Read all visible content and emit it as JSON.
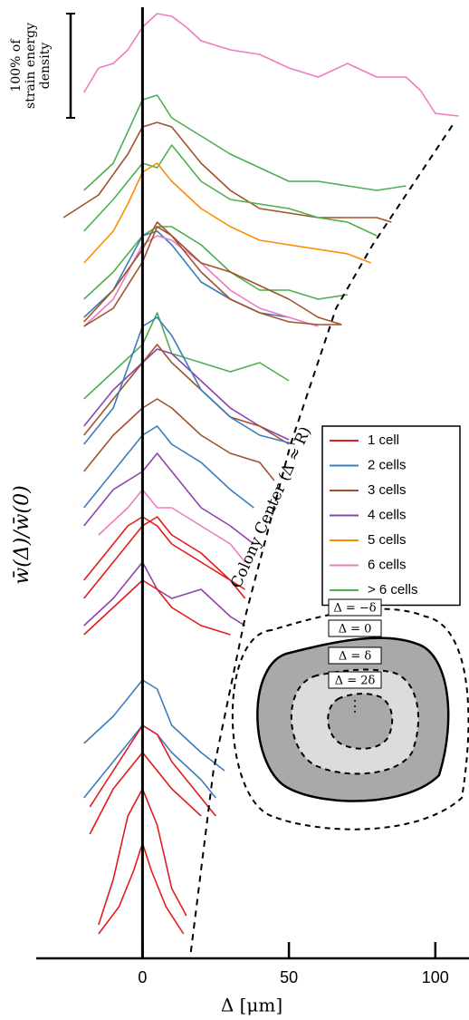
{
  "chart_data": {
    "type": "line",
    "y_label": "w̄(Δ)/w̄(0)",
    "x_label": "Δ [μm]",
    "xlim": [
      -36.3,
      111.5
    ],
    "xticks": [
      0,
      50,
      100
    ],
    "ylim": [
      0,
      105.7
    ],
    "reference_line_x": 0,
    "scale_bar": {
      "lines": [
        "100% of",
        "strain energy",
        "density"
      ],
      "value": 11.5
    },
    "boundary": {
      "label": "Colony Center (Δ ≈ R)",
      "x": [
        16.5,
        24.2,
        35.1,
        50.6,
        66.1,
        78.6,
        106.5
      ],
      "y": [
        0.7,
        20.7,
        37.7,
        56.7,
        71.7,
        78.7,
        92.2
      ]
    },
    "legend": [
      {
        "label": "1 cell",
        "color": "#e41a1c"
      },
      {
        "label": "2 cells",
        "color": "#3a7dbf"
      },
      {
        "label": "3 cells",
        "color": "#a0522d"
      },
      {
        "label": "4 cells",
        "color": "#8e44ad"
      },
      {
        "label": "5 cells",
        "color": "#ff8c00"
      },
      {
        "label": "6 cells",
        "color": "#f07ac0"
      },
      {
        "label": "> 6 cells",
        "color": "#4caf50"
      }
    ],
    "inset": {
      "labels": [
        "Δ = −δ",
        "Δ = 0",
        "Δ = δ",
        "Δ = 2δ"
      ]
    },
    "series": [
      {
        "name": "6 cells",
        "color": "#f07ac0",
        "x": [
          -20,
          -15,
          -10,
          -5,
          0,
          5,
          10,
          15,
          20,
          30,
          40,
          50,
          60,
          70,
          80,
          90,
          95,
          100,
          108
        ],
        "values": [
          95.5,
          98.2,
          98.7,
          100.2,
          102.7,
          104.2,
          103.9,
          102.7,
          101.2,
          100.2,
          99.7,
          98.2,
          97.2,
          98.7,
          97.2,
          97.2,
          95.7,
          93.2,
          92.9
        ]
      },
      {
        "name": "> 6 cells",
        "color": "#4caf50",
        "x": [
          -20,
          -10,
          0,
          5,
          10,
          20,
          30,
          40,
          50,
          60,
          70,
          80,
          90
        ],
        "values": [
          84.7,
          87.7,
          94.7,
          95.2,
          92.7,
          90.7,
          88.7,
          87.2,
          85.7,
          85.7,
          85.2,
          84.7,
          85.2
        ]
      },
      {
        "name": "3 cells",
        "color": "#a0522d",
        "x": [
          -27,
          -15,
          -5,
          0,
          5,
          10,
          20,
          30,
          40,
          50,
          60,
          80,
          85
        ],
        "values": [
          81.7,
          84.2,
          88.7,
          91.7,
          92.2,
          91.7,
          87.7,
          84.7,
          82.7,
          82.2,
          81.7,
          81.7,
          81.2
        ]
      },
      {
        "name": "> 6 cells",
        "color": "#4caf50",
        "x": [
          -20,
          -10,
          0,
          5,
          10,
          20,
          30,
          40,
          50,
          60,
          70,
          80
        ],
        "values": [
          80.2,
          83.7,
          87.7,
          87.2,
          89.7,
          85.7,
          83.7,
          83.2,
          82.7,
          81.7,
          81.2,
          79.7
        ]
      },
      {
        "name": "5 cells",
        "color": "#ff8c00",
        "x": [
          -20,
          -10,
          -5,
          0,
          5,
          10,
          20,
          30,
          40,
          50,
          60,
          70,
          78
        ],
        "values": [
          76.7,
          80.2,
          83.2,
          86.7,
          87.7,
          85.7,
          82.7,
          80.7,
          79.2,
          78.7,
          78.2,
          77.7,
          76.7
        ]
      },
      {
        "name": "> 6 cells",
        "color": "#4caf50",
        "x": [
          -20,
          -10,
          0,
          5,
          10,
          20,
          30,
          40,
          50,
          60,
          70
        ],
        "values": [
          72.7,
          75.7,
          79.7,
          80.7,
          80.7,
          78.7,
          75.7,
          73.7,
          73.7,
          72.7,
          73.2
        ]
      },
      {
        "name": "2 cells",
        "color": "#3a7dbf",
        "x": [
          -20,
          -10,
          0,
          5,
          10,
          20,
          30,
          40,
          50
        ],
        "values": [
          70.7,
          73.7,
          79.7,
          80.2,
          78.7,
          74.6,
          72.7,
          71.2,
          70.7
        ]
      },
      {
        "name": "6 cells",
        "color": "#f07ac0",
        "x": [
          -20,
          -10,
          0,
          5,
          10,
          20,
          30,
          40,
          50,
          60
        ],
        "values": [
          69.7,
          72.7,
          78.7,
          79.7,
          79.2,
          76.7,
          73.7,
          71.7,
          70.7,
          69.7
        ]
      },
      {
        "name": "3 cells",
        "color": "#a0522d",
        "x": [
          -20,
          -10,
          0,
          5,
          10,
          20,
          30,
          40,
          50,
          60,
          68
        ],
        "values": [
          70.2,
          73.7,
          78.2,
          81.2,
          79.7,
          76.7,
          75.7,
          74.2,
          72.7,
          70.7,
          69.9
        ]
      },
      {
        "name": "3 cells",
        "color": "#a0522d",
        "x": [
          -20,
          -10,
          0,
          5,
          10,
          20,
          30,
          40,
          50,
          60,
          68
        ],
        "values": [
          69.7,
          71.7,
          76.8,
          80.7,
          79.7,
          75.7,
          72.7,
          71.2,
          70.2,
          69.9,
          69.9
        ]
      },
      {
        "name": "> 6 cells",
        "color": "#4caf50",
        "x": [
          -20,
          -10,
          0,
          5,
          10,
          20,
          30,
          40,
          50
        ],
        "values": [
          61.7,
          64.7,
          67.7,
          71.2,
          66.7,
          65.7,
          64.7,
          65.7,
          63.7
        ]
      },
      {
        "name": "4 cells",
        "color": "#8e44ad",
        "x": [
          -20,
          -10,
          0,
          5,
          10,
          20,
          30,
          40,
          50
        ],
        "values": [
          58.7,
          62.7,
          65.7,
          67.2,
          66.7,
          63.7,
          60.7,
          58.7,
          57.2
        ]
      },
      {
        "name": "3 cells",
        "color": "#a0522d",
        "x": [
          -20,
          -10,
          0,
          5,
          10,
          20,
          30,
          40,
          50
        ],
        "values": [
          57.7,
          61.7,
          65.7,
          67.7,
          65.7,
          62.7,
          59.7,
          58.7,
          56.7
        ]
      },
      {
        "name": "2 cells",
        "color": "#3a7dbf",
        "x": [
          -20,
          -10,
          0,
          5,
          10,
          20,
          30,
          40,
          52
        ],
        "values": [
          56.7,
          60.7,
          69.7,
          70.7,
          68.7,
          62.7,
          59.7,
          57.7,
          56.7
        ]
      },
      {
        "name": "3 cells",
        "color": "#a0522d",
        "x": [
          -20,
          -10,
          0,
          5,
          10,
          20,
          30,
          40,
          45
        ],
        "values": [
          53.7,
          57.7,
          60.7,
          61.7,
          60.7,
          57.7,
          55.7,
          54.7,
          52.7
        ]
      },
      {
        "name": "2 cells",
        "color": "#3a7dbf",
        "x": [
          -20,
          -10,
          0,
          5,
          10,
          20,
          30,
          38
        ],
        "values": [
          49.7,
          53.7,
          57.7,
          58.7,
          56.7,
          54.7,
          51.7,
          49.7
        ]
      },
      {
        "name": "4 cells",
        "color": "#8e44ad",
        "x": [
          -20,
          -10,
          0,
          5,
          10,
          20,
          30,
          38
        ],
        "values": [
          47.7,
          51.7,
          53.7,
          55.7,
          53.7,
          49.7,
          47.7,
          45.7
        ]
      },
      {
        "name": "6 cells",
        "color": "#f07ac0",
        "x": [
          -15,
          -5,
          0,
          5,
          10,
          20,
          30,
          35
        ],
        "values": [
          46.7,
          49.7,
          51.7,
          49.7,
          49.7,
          47.7,
          45.7,
          43.7
        ]
      },
      {
        "name": "1 cell",
        "color": "#e41a1c",
        "x": [
          -20,
          -10,
          -5,
          0,
          5,
          10,
          20,
          30,
          35
        ],
        "values": [
          41.7,
          45.7,
          47.7,
          48.7,
          47.7,
          45.7,
          43.7,
          41.7,
          40.7
        ]
      },
      {
        "name": "1 cell",
        "color": "#e41a1c",
        "x": [
          -20,
          -10,
          0,
          5,
          10,
          20,
          30,
          35
        ],
        "values": [
          39.7,
          43.7,
          47.7,
          48.7,
          46.7,
          44.7,
          41.7,
          39.7
        ]
      },
      {
        "name": "4 cells",
        "color": "#8e44ad",
        "x": [
          -20,
          -10,
          0,
          5,
          10,
          20,
          30,
          35
        ],
        "values": [
          36.7,
          39.7,
          43.7,
          40.7,
          39.7,
          40.7,
          37.7,
          36.7
        ]
      },
      {
        "name": "1 cell",
        "color": "#e41a1c",
        "x": [
          -20,
          -10,
          0,
          5,
          10,
          20,
          30
        ],
        "values": [
          35.7,
          38.7,
          41.7,
          40.7,
          38.7,
          36.7,
          35.7
        ]
      },
      {
        "name": "2 cells",
        "color": "#3a7dbf",
        "x": [
          -20,
          -10,
          0,
          5,
          10,
          20,
          28
        ],
        "values": [
          23.7,
          26.7,
          30.7,
          29.7,
          25.7,
          22.7,
          20.7
        ]
      },
      {
        "name": "2 cells",
        "color": "#3a7dbf",
        "x": [
          -20,
          -10,
          0,
          5,
          10,
          20,
          25
        ],
        "values": [
          17.7,
          21.7,
          25.7,
          24.7,
          22.7,
          19.7,
          17.7
        ]
      },
      {
        "name": "1 cell",
        "color": "#e41a1c",
        "x": [
          -18,
          -10,
          0,
          5,
          10,
          20,
          25
        ],
        "values": [
          16.7,
          20.7,
          25.7,
          24.7,
          21.7,
          17.7,
          15.7
        ]
      },
      {
        "name": "1 cell",
        "color": "#e41a1c",
        "x": [
          -18,
          -10,
          0,
          5,
          10,
          20
        ],
        "values": [
          13.7,
          18.7,
          22.7,
          20.7,
          18.7,
          15.7
        ]
      },
      {
        "name": "1 cell",
        "color": "#e41a1c",
        "x": [
          -15,
          -10,
          -5,
          0,
          5,
          10,
          15
        ],
        "values": [
          3.7,
          8.7,
          15.7,
          18.7,
          14.7,
          7.7,
          4.7
        ]
      },
      {
        "name": "1 cell",
        "color": "#e41a1c",
        "x": [
          -15,
          -8,
          -3,
          0,
          3,
          8,
          14
        ],
        "values": [
          2.7,
          5.7,
          9.7,
          12.7,
          9.7,
          5.7,
          2.7
        ]
      }
    ]
  }
}
